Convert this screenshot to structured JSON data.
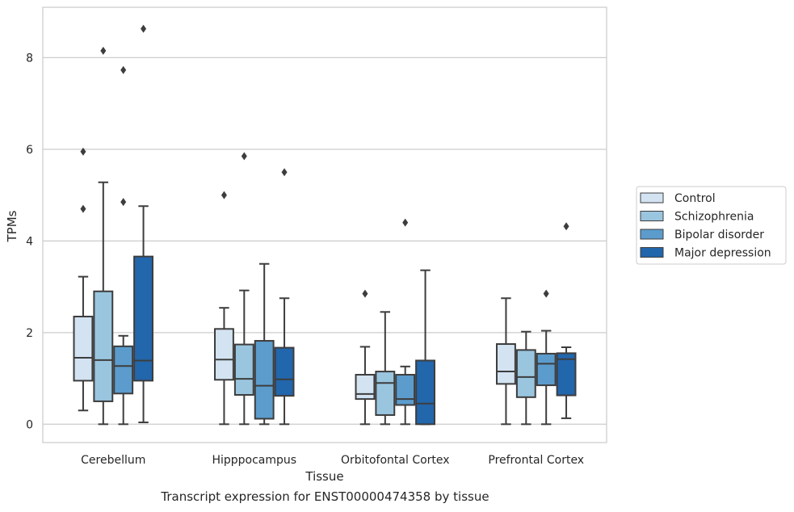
{
  "chart_data": {
    "type": "box",
    "xlabel": "Tissue",
    "ylabel": "TPMs",
    "caption": "Transcript expression for ENST00000474358 by tissue",
    "ylim": [
      -0.4,
      9.1
    ],
    "yticks": [
      0,
      2,
      4,
      6,
      8
    ],
    "grid": "horizontal",
    "legend_position": "right",
    "categories": [
      "Cerebellum",
      "Hipppocampus",
      "Orbitofontal Cortex",
      "Prefrontal Cortex"
    ],
    "series": [
      {
        "name": "Control",
        "color": "#d3e3f2",
        "boxes": [
          {
            "whisker_low": 0.3,
            "q1": 0.95,
            "median": 1.45,
            "q3": 2.35,
            "whisker_high": 3.22,
            "outliers": [
              4.7,
              5.95
            ]
          },
          {
            "whisker_low": 0.0,
            "q1": 0.97,
            "median": 1.41,
            "q3": 2.08,
            "whisker_high": 2.54,
            "outliers": [
              5.0
            ]
          },
          {
            "whisker_low": 0.0,
            "q1": 0.55,
            "median": 0.66,
            "q3": 1.08,
            "whisker_high": 1.69,
            "outliers": [
              2.85
            ]
          },
          {
            "whisker_low": 0.0,
            "q1": 0.88,
            "median": 1.15,
            "q3": 1.75,
            "whisker_high": 2.75,
            "outliers": []
          }
        ]
      },
      {
        "name": "Schizophrenia",
        "color": "#9ac5df",
        "boxes": [
          {
            "whisker_low": 0.0,
            "q1": 0.5,
            "median": 1.4,
            "q3": 2.9,
            "whisker_high": 5.28,
            "outliers": [
              8.15
            ]
          },
          {
            "whisker_low": 0.0,
            "q1": 0.64,
            "median": 0.99,
            "q3": 1.74,
            "whisker_high": 2.92,
            "outliers": [
              5.85
            ]
          },
          {
            "whisker_low": 0.0,
            "q1": 0.2,
            "median": 0.9,
            "q3": 1.15,
            "whisker_high": 2.45,
            "outliers": []
          },
          {
            "whisker_low": 0.0,
            "q1": 0.59,
            "median": 1.03,
            "q3": 1.62,
            "whisker_high": 2.02,
            "outliers": []
          }
        ]
      },
      {
        "name": "Bipolar disorder",
        "color": "#5b9ccd",
        "boxes": [
          {
            "whisker_low": 0.0,
            "q1": 0.67,
            "median": 1.27,
            "q3": 1.7,
            "whisker_high": 1.93,
            "outliers": [
              4.85,
              7.73
            ]
          },
          {
            "whisker_low": 0.0,
            "q1": 0.12,
            "median": 0.84,
            "q3": 1.82,
            "whisker_high": 3.5,
            "outliers": []
          },
          {
            "whisker_low": 0.0,
            "q1": 0.42,
            "median": 0.55,
            "q3": 1.08,
            "whisker_high": 1.26,
            "outliers": [
              4.4
            ]
          },
          {
            "whisker_low": 0.0,
            "q1": 0.85,
            "median": 1.32,
            "q3": 1.54,
            "whisker_high": 2.04,
            "outliers": [
              2.85
            ]
          }
        ]
      },
      {
        "name": "Major depression",
        "color": "#2266ac",
        "boxes": [
          {
            "whisker_low": 0.04,
            "q1": 0.95,
            "median": 1.39,
            "q3": 3.66,
            "whisker_high": 4.76,
            "outliers": [
              8.63
            ]
          },
          {
            "whisker_low": 0.0,
            "q1": 0.62,
            "median": 0.98,
            "q3": 1.67,
            "whisker_high": 2.75,
            "outliers": [
              5.5
            ]
          },
          {
            "whisker_low": 0.0,
            "q1": 0.0,
            "median": 0.45,
            "q3": 1.39,
            "whisker_high": 3.36,
            "outliers": []
          },
          {
            "whisker_low": 0.13,
            "q1": 0.63,
            "median": 1.42,
            "q3": 1.55,
            "whisker_high": 1.68,
            "outliers": [
              4.32
            ]
          }
        ]
      }
    ]
  }
}
